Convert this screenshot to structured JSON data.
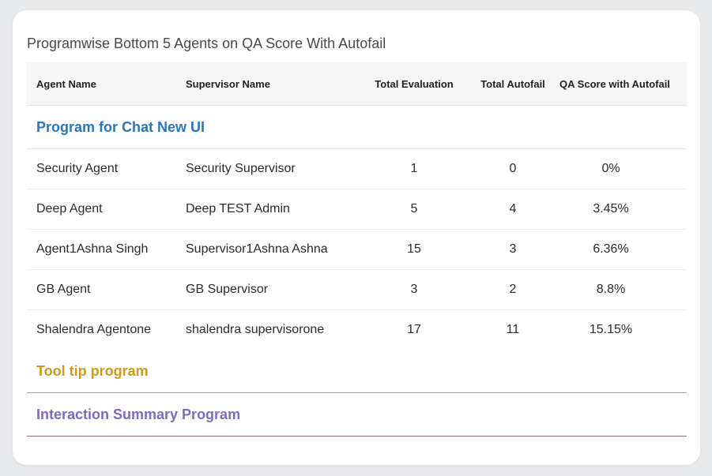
{
  "title": "Programwise Bottom 5 Agents on QA Score With Autofail",
  "columns": {
    "agent": "Agent Name",
    "supervisor": "Supervisor Name",
    "evaluation": "Total Evaluation",
    "autofail": "Total Autofail",
    "qa": "QA Score with Autofail"
  },
  "programs": [
    {
      "name": "Program for Chat New UI",
      "color": "#2a74b9",
      "rows": [
        {
          "agent": "Security Agent",
          "supervisor": "Security Supervisor",
          "evaluation": "1",
          "autofail": "0",
          "qa": "0%"
        },
        {
          "agent": "Deep Agent",
          "supervisor": "Deep TEST Admin",
          "evaluation": "5",
          "autofail": "4",
          "qa": "3.45%"
        },
        {
          "agent": "Agent1Ashna Singh",
          "supervisor": "Supervisor1Ashna Ashna",
          "evaluation": "15",
          "autofail": "3",
          "qa": "6.36%"
        },
        {
          "agent": "GB Agent",
          "supervisor": "GB Supervisor",
          "evaluation": "3",
          "autofail": "2",
          "qa": "8.8%"
        },
        {
          "agent": "Shalendra Agentone",
          "supervisor": "shalendra supervisorone",
          "evaluation": "17",
          "autofail": "11",
          "qa": "15.15%"
        }
      ]
    },
    {
      "name": "Tool tip program",
      "color": "#cc9a1c",
      "rows": []
    },
    {
      "name": "Interaction Summary Program",
      "color": "#8068c6",
      "rows": []
    }
  ]
}
